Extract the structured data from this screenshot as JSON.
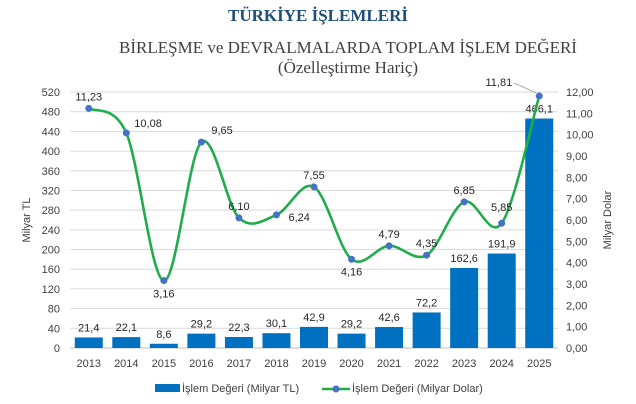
{
  "header": {
    "title": "TÜRKİYE İŞLEMLERİ"
  },
  "chart_data": {
    "type": "bar+line",
    "title": "BİRLEŞME ve DEVRALMALARDA TOPLAM İŞLEM DEĞERİ",
    "subtitle": "(Özelleştirme Hariç)",
    "categories": [
      "2013",
      "2014",
      "2015",
      "2016",
      "2017",
      "2018",
      "2019",
      "2020",
      "2021",
      "2022",
      "2023",
      "2024",
      "2025"
    ],
    "series": [
      {
        "name": "İşlem Değeri (Milyar TL)",
        "type": "bar",
        "axis": "left",
        "color": "#0070c0",
        "values": [
          21.4,
          22.1,
          8.6,
          29.2,
          22.3,
          30.1,
          42.9,
          29.2,
          42.6,
          72.2,
          162.6,
          191.9,
          466.1
        ],
        "labels": [
          "21,4",
          "22,1",
          "8,6",
          "29,2",
          "22,3",
          "30,1",
          "42,9",
          "29,2",
          "42,6",
          "72,2",
          "162,6",
          "191,9",
          "466,1"
        ]
      },
      {
        "name": "İşlem Değeri (Milyar Dolar)",
        "type": "line",
        "smooth": true,
        "axis": "right",
        "color": "#1fad4b",
        "marker_color": "#4472c4",
        "values": [
          11.23,
          10.08,
          3.16,
          9.65,
          6.1,
          6.24,
          7.55,
          4.16,
          4.79,
          4.35,
          6.85,
          5.85,
          11.81
        ],
        "labels": [
          "11,23",
          "10,08",
          "3,16",
          "9,65",
          "6,10",
          "6,24",
          "7,55",
          "4,16",
          "4,79",
          "4,35",
          "6,85",
          "5,85",
          "11,81"
        ]
      }
    ],
    "ylabel": "Milyar TL",
    "ylim": [
      0,
      520
    ],
    "yticks": [
      "0",
      "40",
      "80",
      "120",
      "160",
      "200",
      "240",
      "280",
      "320",
      "360",
      "400",
      "440",
      "480",
      "520"
    ],
    "y2label": "Milyar Dolar",
    "y2lim": [
      0,
      12
    ],
    "y2ticks": [
      "0,00",
      "1,00",
      "2,00",
      "3,00",
      "4,00",
      "5,00",
      "6,00",
      "7,00",
      "8,00",
      "9,00",
      "10,00",
      "11,00",
      "12,00"
    ],
    "grid": true,
    "legend": "bottom"
  }
}
